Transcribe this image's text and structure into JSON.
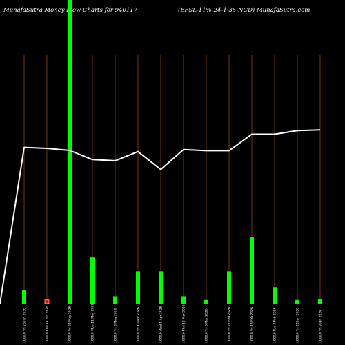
{
  "header": {
    "left_text": "MunafaSutra  Money Flow  Charts for 940117",
    "right_text": "(EFSL-11%-24-1-35-NCD) MunafaSutra.com"
  },
  "colors": {
    "background": "#000000",
    "inflow_bar": "#00ff00",
    "outflow_bar": "#ff0000",
    "grid_line": "#8b4513",
    "price_line": "#ffffff"
  },
  "chart_data": {
    "type": "bar",
    "title": "MunafaSutra  Money Flow  Charts for 940117",
    "subtitle": "(EFSL-11%-24-1-35-NCD) MunafaSutra.com",
    "categories": [
      "1000.0 Fri 26 Jun 2026",
      "1000.0 Thu 11 Jun 2026",
      "1000.0 Fri 22 May 2026",
      "1000.0 Mon 11 May 2026",
      "1000.0 Fri 8 May 2026",
      "1000.0 Fri 10 Apr 2026",
      "1000.0 Wed 1 Apr 2026",
      "1000.0 Thu 12 Mar 2026",
      "1000.0 Fri 6 Mar 2026",
      "1000.0 Fri 27 Feb 2026",
      "1000.0 Fri 13 Feb 2026",
      "1000.0 Tue 3 Feb 2026",
      "1000.0 Fri 23 Jan 2026",
      "1000.0 Fri 9 Jan 2026"
    ],
    "series": [
      {
        "values": [
          22,
          6,
          500,
          76,
          12,
          53,
          53,
          12,
          6,
          53,
          109,
          27,
          6,
          8
        ],
        "direction": [
          "in",
          "out",
          "in",
          "in",
          "in",
          "in",
          "in",
          "in",
          "in",
          "in",
          "in",
          "in",
          "in",
          "in"
        ]
      },
      {
        "values": [
          1000.0,
          999.83,
          999.48,
          997.93,
          997.74,
          999.28,
          996.26,
          999.63,
          999.44,
          999.44,
          1002.22,
          1002.22,
          1002.83,
          1002.96
        ]
      }
    ],
    "xlabel": "",
    "ylabel": "",
    "ylim": [
      0,
      500
    ],
    "grid": true,
    "legend": "none"
  }
}
